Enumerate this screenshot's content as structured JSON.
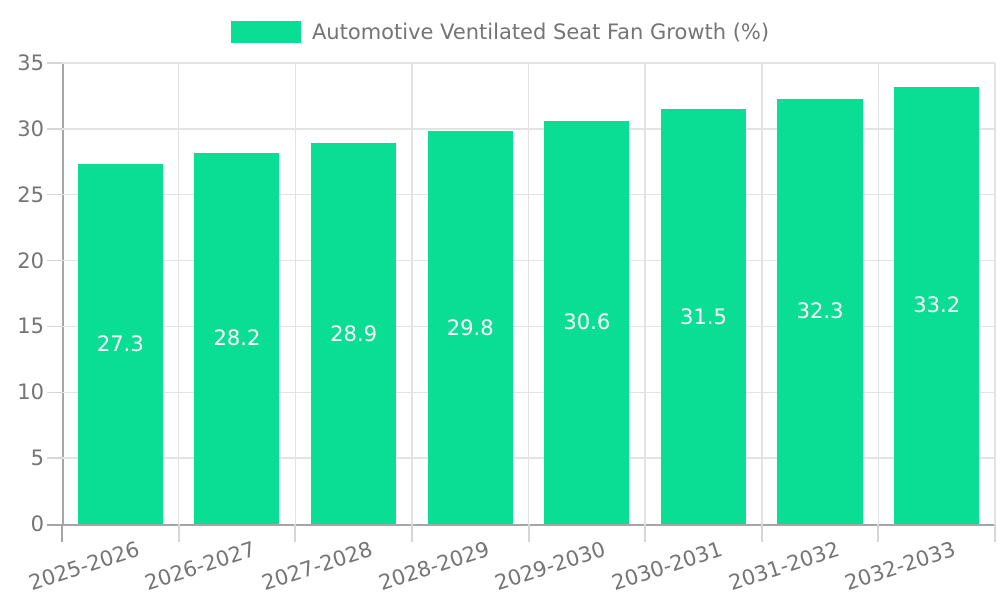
{
  "legend": {
    "label": "Automotive Ventilated Seat Fan Growth (%)"
  },
  "chart_data": {
    "type": "bar",
    "title": "Automotive Ventilated Seat Fan Growth (%)",
    "categories": [
      "2025-2026",
      "2026-2027",
      "2027-2028",
      "2028-2029",
      "2029-2030",
      "2030-2031",
      "2031-2032",
      "2032-2033"
    ],
    "values": [
      27.3,
      28.2,
      28.9,
      29.8,
      30.6,
      31.5,
      32.3,
      33.2
    ],
    "value_decimals": 1,
    "xlabel": "",
    "ylabel": "",
    "ylim": [
      0,
      35
    ],
    "ytick_step": 5,
    "grid": true,
    "legend_position": "top-center",
    "x_label_rotation_deg": -18,
    "bar_width_fraction": 0.73,
    "colors": {
      "bar": "#0ade95",
      "value_label": "#ffffff",
      "axis": "#a6a6a6",
      "grid": "#e3e3e3",
      "tick": "#d6d6d6",
      "text": "#757575"
    }
  }
}
